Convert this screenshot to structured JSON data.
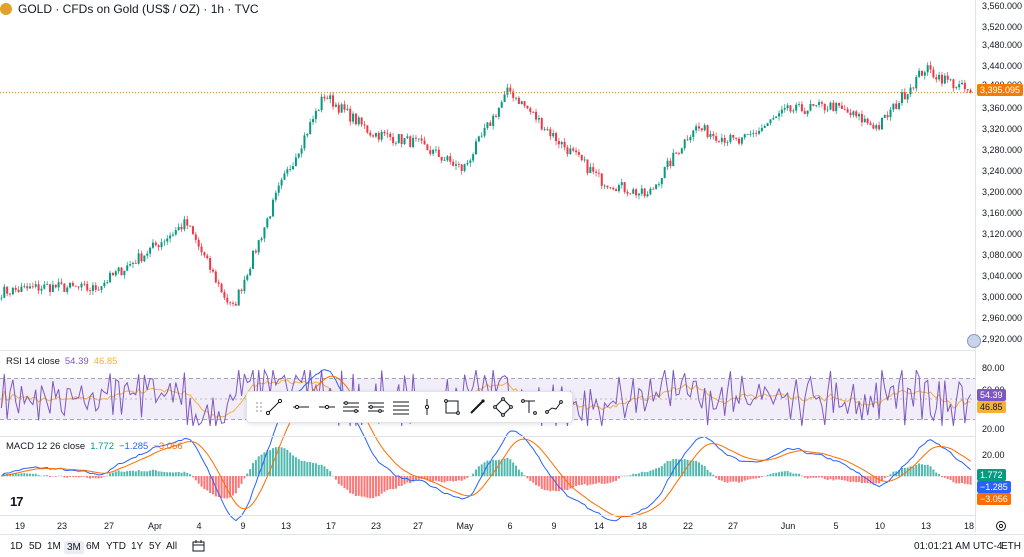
{
  "header": {
    "symbol_title": "GOLD · CFDs on Gold (US$ / OZ) · 1h · TVC"
  },
  "price_axis": {
    "ticks": [
      "3,560.000",
      "3,520.000",
      "3,480.000",
      "3,440.000",
      "3,400.000",
      "3,360.000",
      "3,320.000",
      "3,280.000",
      "3,240.000",
      "3,200.000",
      "3,160.000",
      "3,120.000",
      "3,080.000",
      "3,040.000",
      "3,000.000",
      "2,960.000",
      "2,920.000"
    ],
    "last_price_label": "3,395.095"
  },
  "rsi": {
    "label": "RSI 14 close",
    "value1": "54.39",
    "value2": "46.85",
    "ticks": [
      "80.00",
      "60.00",
      "20.00"
    ],
    "badge1": "54.39",
    "badge2": "46.85"
  },
  "macd": {
    "label": "MACD 12 26 close",
    "value1": "1.772",
    "value2": "−1.285",
    "value3": "−3.056",
    "ticks": [
      "20.00"
    ],
    "badge1": "1.772",
    "badge2": "−1.285",
    "badge3": "−3.056"
  },
  "time_axis": {
    "labels": [
      "19",
      "23",
      "27",
      "Apr",
      "4",
      "9",
      "13",
      "17",
      "23",
      "27",
      "May",
      "6",
      "9",
      "14",
      "18",
      "22",
      "27",
      "Jun",
      "5",
      "10",
      "13",
      "18"
    ]
  },
  "bottom_bar": {
    "ranges": [
      "1D",
      "5D",
      "1M",
      "3M",
      "6M",
      "YTD",
      "1Y",
      "5Y",
      "All"
    ],
    "active_range": "3M",
    "clock": "01:01:21 AM UTC-4",
    "session": "ETH"
  },
  "colors": {
    "up": "#089981",
    "down": "#f23645",
    "rsi_line": "#7e57c2",
    "rsi_ma": "#f5b03c",
    "macd_line": "#2962ff",
    "signal_line": "#ff6d00",
    "last_price": "#f57c00"
  },
  "chart_data": {
    "type": "candlestick",
    "timeframe": "1h",
    "ylim": [
      2920,
      3560
    ],
    "x": [
      "19",
      "23",
      "27",
      "Apr",
      "4",
      "9",
      "13",
      "17",
      "23",
      "27",
      "May",
      "6",
      "9",
      "14",
      "18",
      "22",
      "27",
      "Jun",
      "5",
      "10",
      "13",
      "18"
    ],
    "close_approx": [
      3020,
      3030,
      3025,
      3085,
      3150,
      2985,
      3210,
      3390,
      3320,
      3300,
      3250,
      3400,
      3310,
      3230,
      3200,
      3330,
      3300,
      3360,
      3370,
      3330,
      3440,
      3395
    ],
    "last_price": 3395.095,
    "rsi": {
      "length": 14,
      "source": "close",
      "value": 54.39,
      "ma": 46.85,
      "upper_band": 70,
      "lower_band": 30
    },
    "macd": {
      "fast": 12,
      "slow": 26,
      "source": "close",
      "histogram": 1.772,
      "macd": -1.285,
      "signal": -3.056
    }
  }
}
